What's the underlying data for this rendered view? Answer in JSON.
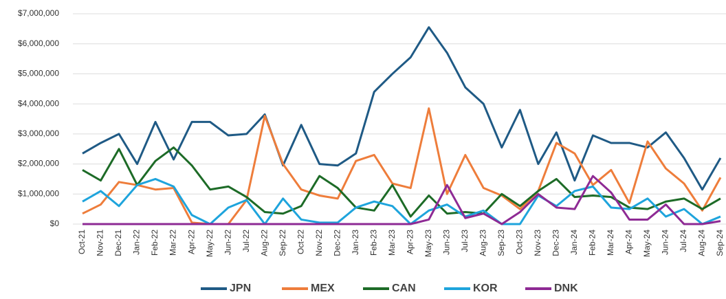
{
  "chart_data": {
    "type": "line",
    "categories": [
      "Oct-21",
      "Nov-21",
      "Dec-21",
      "Jan-22",
      "Feb-22",
      "Mar-22",
      "Apr-22",
      "May-22",
      "Jun-22",
      "Jul-22",
      "Aug-22",
      "Sep-22",
      "Oct-22",
      "Nov-22",
      "Dec-22",
      "Jan-23",
      "Feb-23",
      "Mar-23",
      "Apr-23",
      "May-23",
      "Jun-23",
      "Jul-23",
      "Aug-23",
      "Sep-23",
      "Oct-23",
      "Nov-23",
      "Dec-23",
      "Jan-24",
      "Feb-24",
      "Mar-24",
      "Apr-24",
      "May-24",
      "Jun-24",
      "Jul-24",
      "Aug-24",
      "Sep-24"
    ],
    "series": [
      {
        "name": "JPN",
        "color": "#1f5a85",
        "values": [
          2350000,
          2700000,
          3000000,
          2000000,
          3400000,
          2150000,
          3400000,
          3400000,
          2950000,
          3000000,
          3650000,
          1950000,
          3300000,
          2000000,
          1950000,
          2350000,
          4400000,
          5000000,
          5550000,
          6550000,
          5700000,
          4550000,
          4000000,
          2550000,
          3800000,
          2000000,
          3050000,
          1450000,
          2950000,
          2700000,
          2700000,
          2550000,
          3050000,
          2200000,
          1150000,
          2200000
        ]
      },
      {
        "name": "MEX",
        "color": "#ee7d3b",
        "values": [
          350000,
          650000,
          1400000,
          1300000,
          1150000,
          1200000,
          50000,
          0,
          0,
          800000,
          3600000,
          2000000,
          1150000,
          950000,
          850000,
          2100000,
          2300000,
          1350000,
          1200000,
          3850000,
          1000000,
          2300000,
          1200000,
          950000,
          500000,
          1100000,
          2700000,
          2350000,
          1300000,
          1800000,
          700000,
          2750000,
          1850000,
          1350000,
          450000,
          1550000
        ]
      },
      {
        "name": "CAN",
        "color": "#1d6b27",
        "values": [
          1800000,
          1450000,
          2500000,
          1300000,
          2100000,
          2550000,
          1950000,
          1150000,
          1250000,
          900000,
          400000,
          350000,
          600000,
          1600000,
          1200000,
          550000,
          450000,
          1300000,
          250000,
          950000,
          350000,
          400000,
          350000,
          1000000,
          600000,
          1100000,
          1500000,
          900000,
          950000,
          900000,
          550000,
          500000,
          750000,
          850000,
          500000,
          850000
        ]
      },
      {
        "name": "KOR",
        "color": "#1ea4dc",
        "values": [
          750000,
          1100000,
          600000,
          1300000,
          1500000,
          1250000,
          300000,
          0,
          550000,
          800000,
          0,
          850000,
          150000,
          50000,
          50000,
          550000,
          750000,
          600000,
          0,
          450000,
          650000,
          250000,
          450000,
          0,
          0,
          950000,
          600000,
          1100000,
          1250000,
          550000,
          500000,
          850000,
          250000,
          500000,
          0,
          250000
        ]
      },
      {
        "name": "DNK",
        "color": "#8e2a94",
        "values": [
          0,
          0,
          0,
          0,
          0,
          0,
          0,
          0,
          0,
          0,
          0,
          0,
          0,
          0,
          0,
          0,
          0,
          0,
          0,
          150000,
          1300000,
          200000,
          350000,
          0,
          400000,
          1000000,
          550000,
          500000,
          1600000,
          1050000,
          150000,
          150000,
          650000,
          0,
          0,
          100000
        ]
      }
    ],
    "ylim": [
      0,
      7000000
    ],
    "yticks": [
      {
        "value": 0,
        "label": "$0"
      },
      {
        "value": 1000000,
        "label": "$1,000,000"
      },
      {
        "value": 2000000,
        "label": "$2,000,000"
      },
      {
        "value": 3000000,
        "label": "$3,000,000"
      },
      {
        "value": 4000000,
        "label": "$4,000,000"
      },
      {
        "value": 5000000,
        "label": "$5,000,000"
      },
      {
        "value": 6000000,
        "label": "$6,000,000"
      },
      {
        "value": 7000000,
        "label": "$7,000,000"
      }
    ],
    "grid": true,
    "legend": "bottom"
  }
}
